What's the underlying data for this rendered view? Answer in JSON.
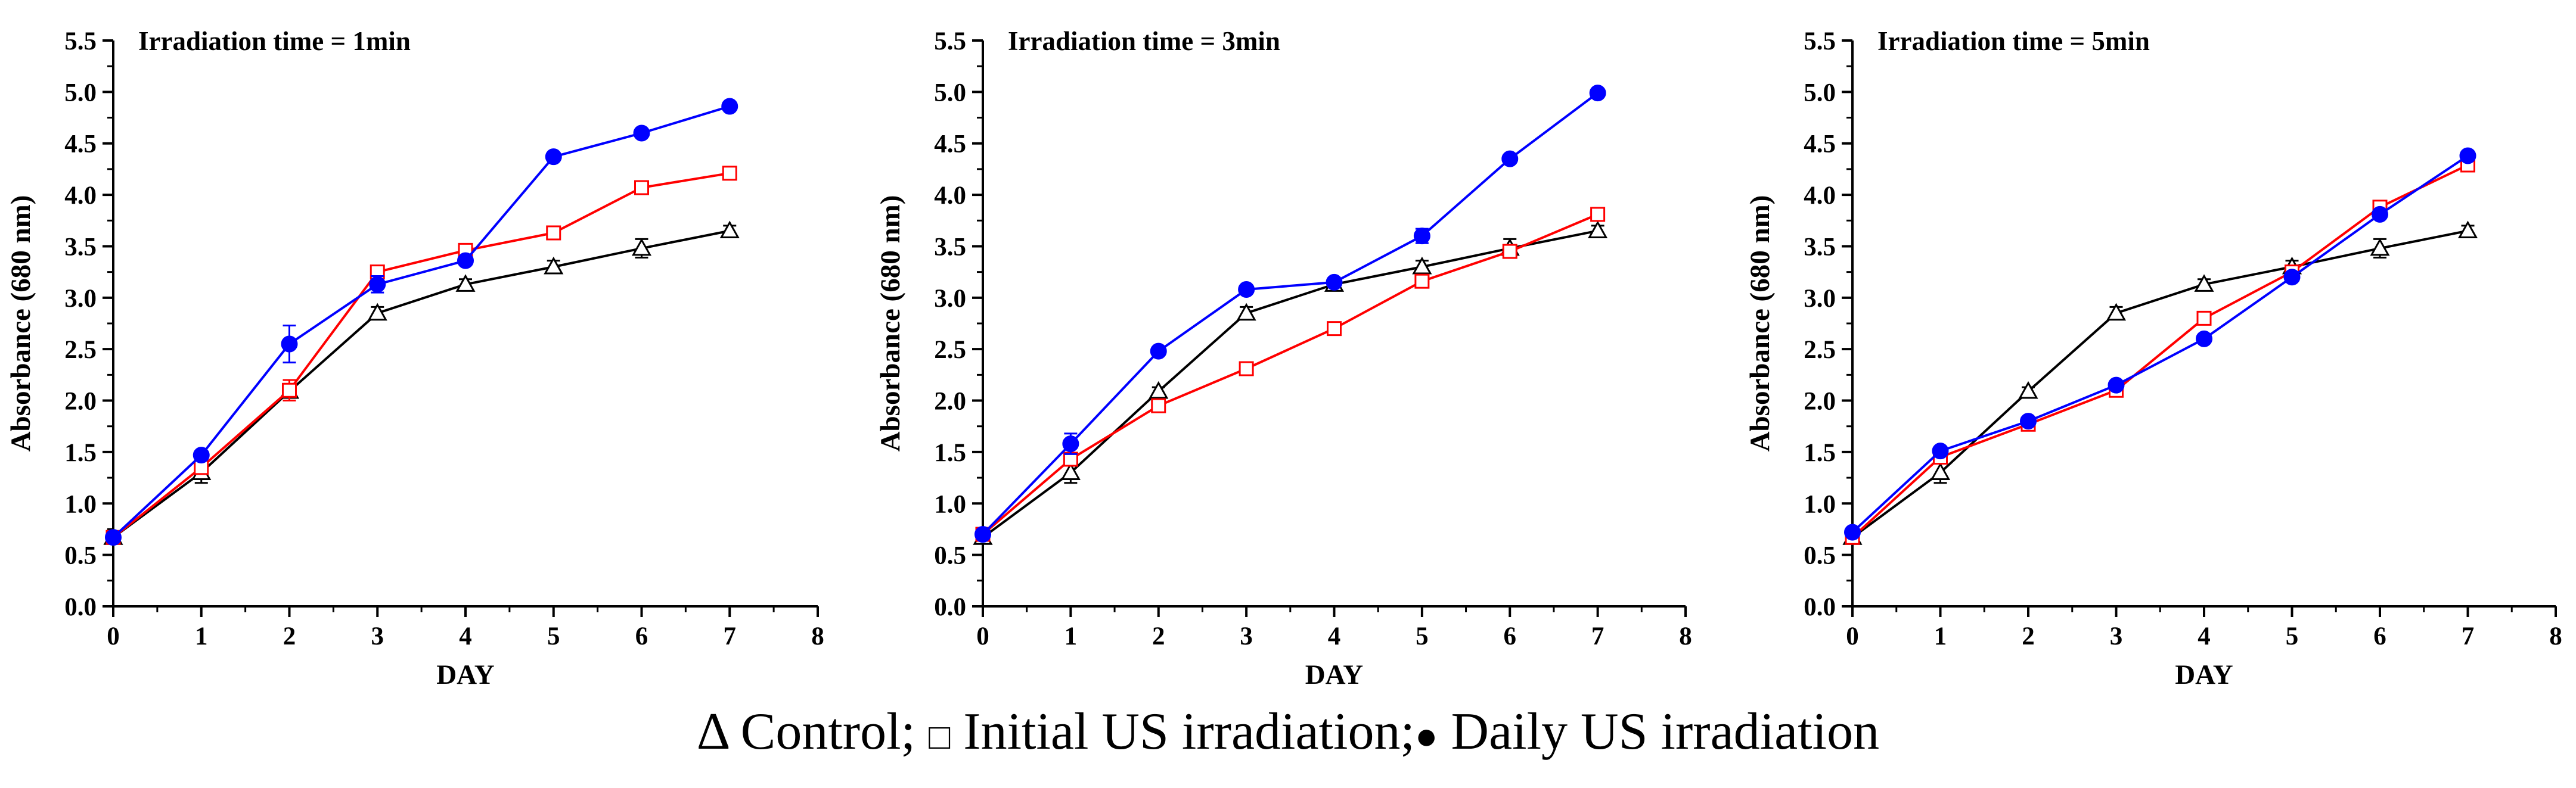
{
  "chart_data": [
    {
      "type": "line",
      "title": "Irradiation time = 1min",
      "xlabel": "DAY",
      "ylabel": "Absorbance (680 nm)",
      "xlim": [
        0,
        8
      ],
      "ylim": [
        0,
        5.5
      ],
      "xticks": [
        "0",
        "1",
        "2",
        "3",
        "4",
        "5",
        "6",
        "7",
        "8"
      ],
      "yticks": [
        "0.0",
        "0.5",
        "1.0",
        "1.5",
        "2.0",
        "2.5",
        "3.0",
        "3.5",
        "4.0",
        "4.5",
        "5.0",
        "5.5"
      ],
      "x": [
        0,
        1,
        2,
        3,
        4,
        5,
        6,
        7
      ],
      "series": [
        {
          "name": "Control",
          "marker": "triangle",
          "color": "#000000",
          "values": [
            0.67,
            1.3,
            2.09,
            2.85,
            3.13,
            3.3,
            3.48,
            3.65
          ],
          "errors": [
            0.03,
            0.1,
            0.04,
            0.06,
            0.05,
            0.06,
            0.09,
            0.05
          ]
        },
        {
          "name": "Initial US irradiation",
          "marker": "square",
          "color": "#ff0000",
          "values": [
            0.67,
            1.35,
            2.1,
            3.25,
            3.46,
            3.63,
            4.07,
            4.21
          ],
          "errors": [
            0.03,
            0.05,
            0.1,
            0.04,
            0.04,
            0.04,
            0.05,
            0.04
          ]
        },
        {
          "name": "Daily US irradiation",
          "marker": "circle",
          "color": "#0000ff",
          "values": [
            0.67,
            1.47,
            2.55,
            3.13,
            3.36,
            4.37,
            4.6,
            4.86
          ],
          "errors": [
            0.03,
            0.04,
            0.18,
            0.08,
            0.04,
            0.03,
            0.03,
            0.03
          ]
        }
      ]
    },
    {
      "type": "line",
      "title": "Irradiation time = 3min",
      "xlabel": "DAY",
      "ylabel": "Absorbance (680 nm)",
      "xlim": [
        0,
        8
      ],
      "ylim": [
        0,
        5.5
      ],
      "xticks": [
        "0",
        "1",
        "2",
        "3",
        "4",
        "5",
        "6",
        "7",
        "8"
      ],
      "yticks": [
        "0.0",
        "0.5",
        "1.0",
        "1.5",
        "2.0",
        "2.5",
        "3.0",
        "3.5",
        "4.0",
        "4.5",
        "5.0",
        "5.5"
      ],
      "x": [
        0,
        1,
        2,
        3,
        4,
        5,
        6,
        7
      ],
      "series": [
        {
          "name": "Control",
          "marker": "triangle",
          "color": "#000000",
          "values": [
            0.67,
            1.3,
            2.09,
            2.85,
            3.13,
            3.3,
            3.48,
            3.65
          ],
          "errors": [
            0.03,
            0.1,
            0.04,
            0.06,
            0.05,
            0.06,
            0.09,
            0.05
          ]
        },
        {
          "name": "Initial US irradiation",
          "marker": "square",
          "color": "#ff0000",
          "values": [
            0.7,
            1.43,
            1.95,
            2.31,
            2.7,
            3.16,
            3.45,
            3.81
          ],
          "errors": [
            0.03,
            0.04,
            0.04,
            0.04,
            0.04,
            0.05,
            0.04,
            0.04
          ]
        },
        {
          "name": "Daily US irradiation",
          "marker": "circle",
          "color": "#0000ff",
          "values": [
            0.7,
            1.58,
            2.48,
            3.08,
            3.15,
            3.6,
            4.35,
            4.99
          ],
          "errors": [
            0.03,
            0.1,
            0.04,
            0.04,
            0.04,
            0.07,
            0.03,
            0.03
          ]
        }
      ]
    },
    {
      "type": "line",
      "title": "Irradiation time = 5min",
      "xlabel": "DAY",
      "ylabel": "Absorbance (680 nm)",
      "xlim": [
        0,
        8
      ],
      "ylim": [
        0,
        5.5
      ],
      "xticks": [
        "0",
        "1",
        "2",
        "3",
        "4",
        "5",
        "6",
        "7",
        "8"
      ],
      "yticks": [
        "0.0",
        "0.5",
        "1.0",
        "1.5",
        "2.0",
        "2.5",
        "3.0",
        "3.5",
        "4.0",
        "4.5",
        "5.0",
        "5.5"
      ],
      "x": [
        0,
        1,
        2,
        3,
        4,
        5,
        6,
        7
      ],
      "series": [
        {
          "name": "Control",
          "marker": "triangle",
          "color": "#000000",
          "values": [
            0.67,
            1.3,
            2.09,
            2.85,
            3.13,
            3.3,
            3.48,
            3.65
          ],
          "errors": [
            0.03,
            0.1,
            0.04,
            0.06,
            0.05,
            0.06,
            0.09,
            0.05
          ]
        },
        {
          "name": "Initial US irradiation",
          "marker": "square",
          "color": "#ff0000",
          "values": [
            0.67,
            1.45,
            1.77,
            2.1,
            2.8,
            3.25,
            3.88,
            4.29
          ],
          "errors": [
            0.03,
            0.04,
            0.04,
            0.04,
            0.06,
            0.04,
            0.04,
            0.04
          ]
        },
        {
          "name": "Daily US irradiation",
          "marker": "circle",
          "color": "#0000ff",
          "values": [
            0.72,
            1.51,
            1.8,
            2.15,
            2.6,
            3.2,
            3.81,
            4.38
          ],
          "errors": [
            0.03,
            0.04,
            0.04,
            0.04,
            0.04,
            0.04,
            0.04,
            0.03
          ]
        }
      ]
    }
  ],
  "legend": {
    "control_symbol": "Δ",
    "control_label": "Control;",
    "initial_symbol": "□",
    "initial_label": "Initial US irradiation;",
    "daily_symbol": "●",
    "daily_label": "Daily US irradiation"
  }
}
